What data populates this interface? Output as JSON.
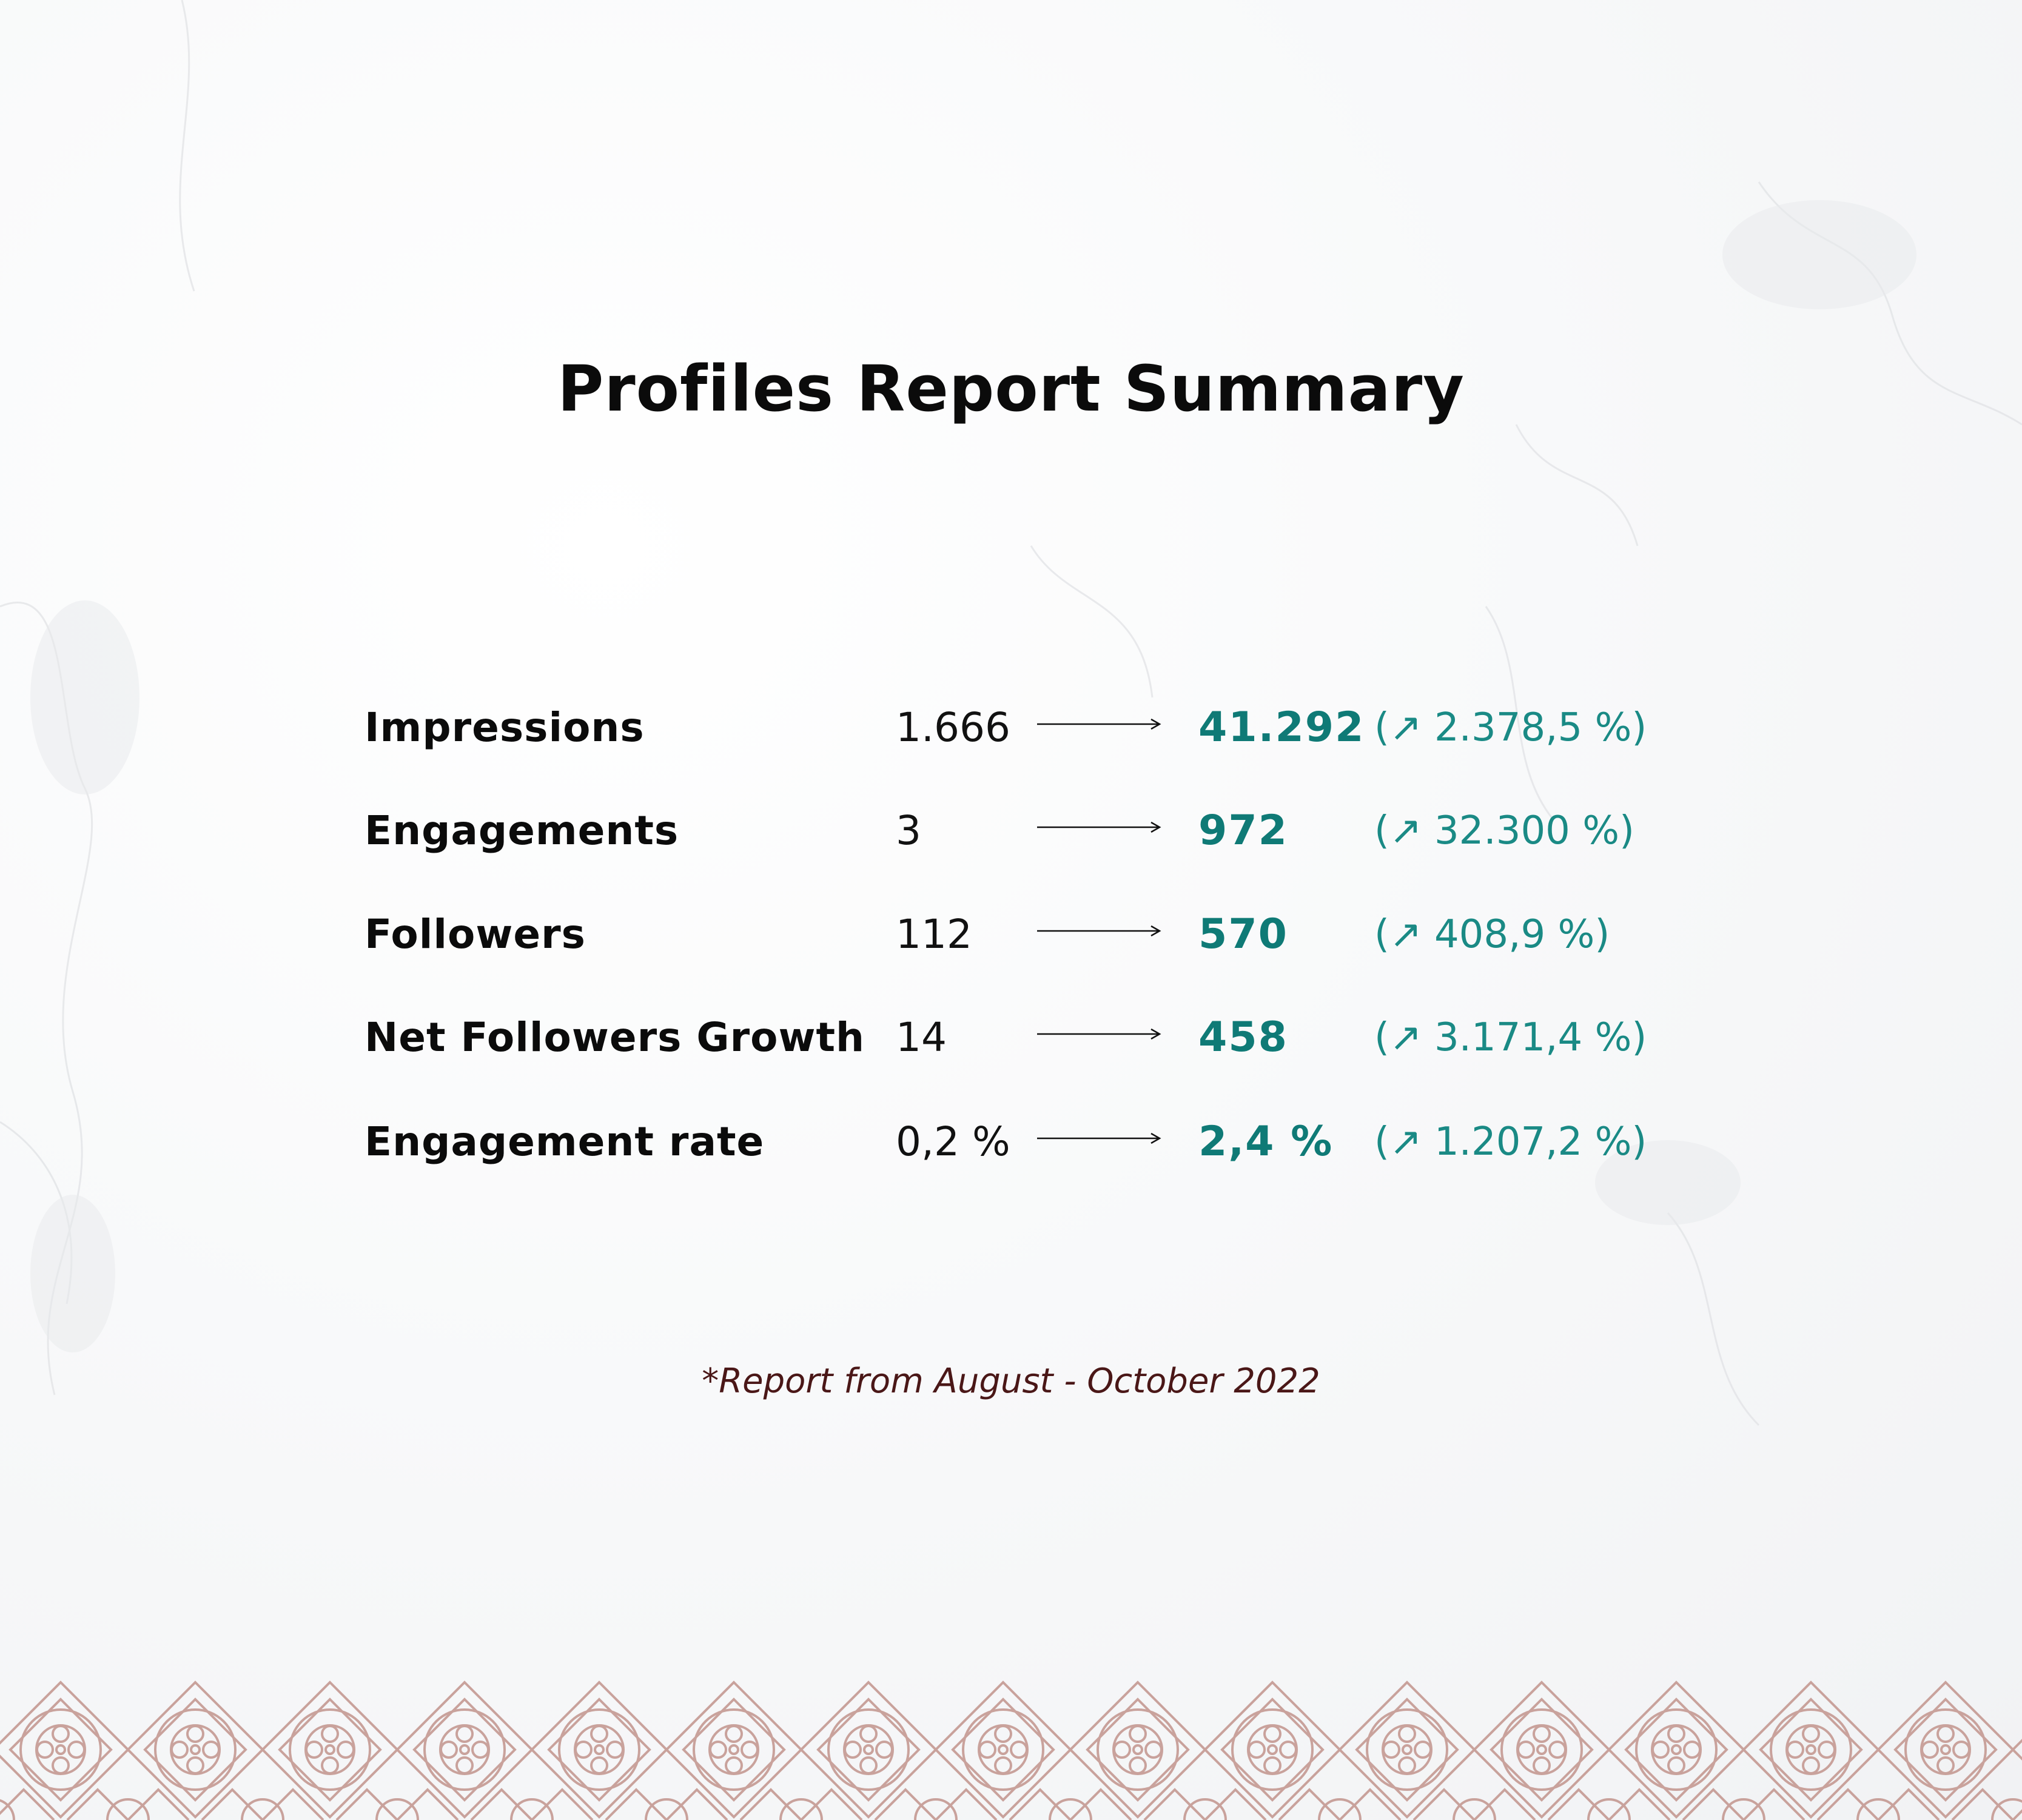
{
  "title": "Profiles Report Summary",
  "metrics": [
    {
      "label": "Impressions",
      "before": "1.666",
      "after": "41.292",
      "change": "(↗ 2.378,5 %)"
    },
    {
      "label": "Engagements",
      "before": "3",
      "after": "972",
      "change": "(↗ 32.300 %)"
    },
    {
      "label": "Followers",
      "before": "112",
      "after": "570",
      "change": "(↗ 408,9 %)"
    },
    {
      "label": "Net Followers Growth",
      "before": "14",
      "after": "458",
      "change": "(↗ 3.171,4 %)"
    },
    {
      "label": "Engagement rate",
      "before": "0,2 %",
      "after": "2,4 %",
      "change": "(↗ 1.207,2 %)"
    }
  ],
  "footnote": "*Report from August - October 2022",
  "colors": {
    "text": "#0b0b0b",
    "accent": "#0f7a76",
    "change": "#1a8a85",
    "footnote": "#4a1717",
    "pattern": "#c9a29c"
  },
  "decor": {
    "background": "white-marble-texture",
    "border_pattern": "diamond-tile-border"
  }
}
